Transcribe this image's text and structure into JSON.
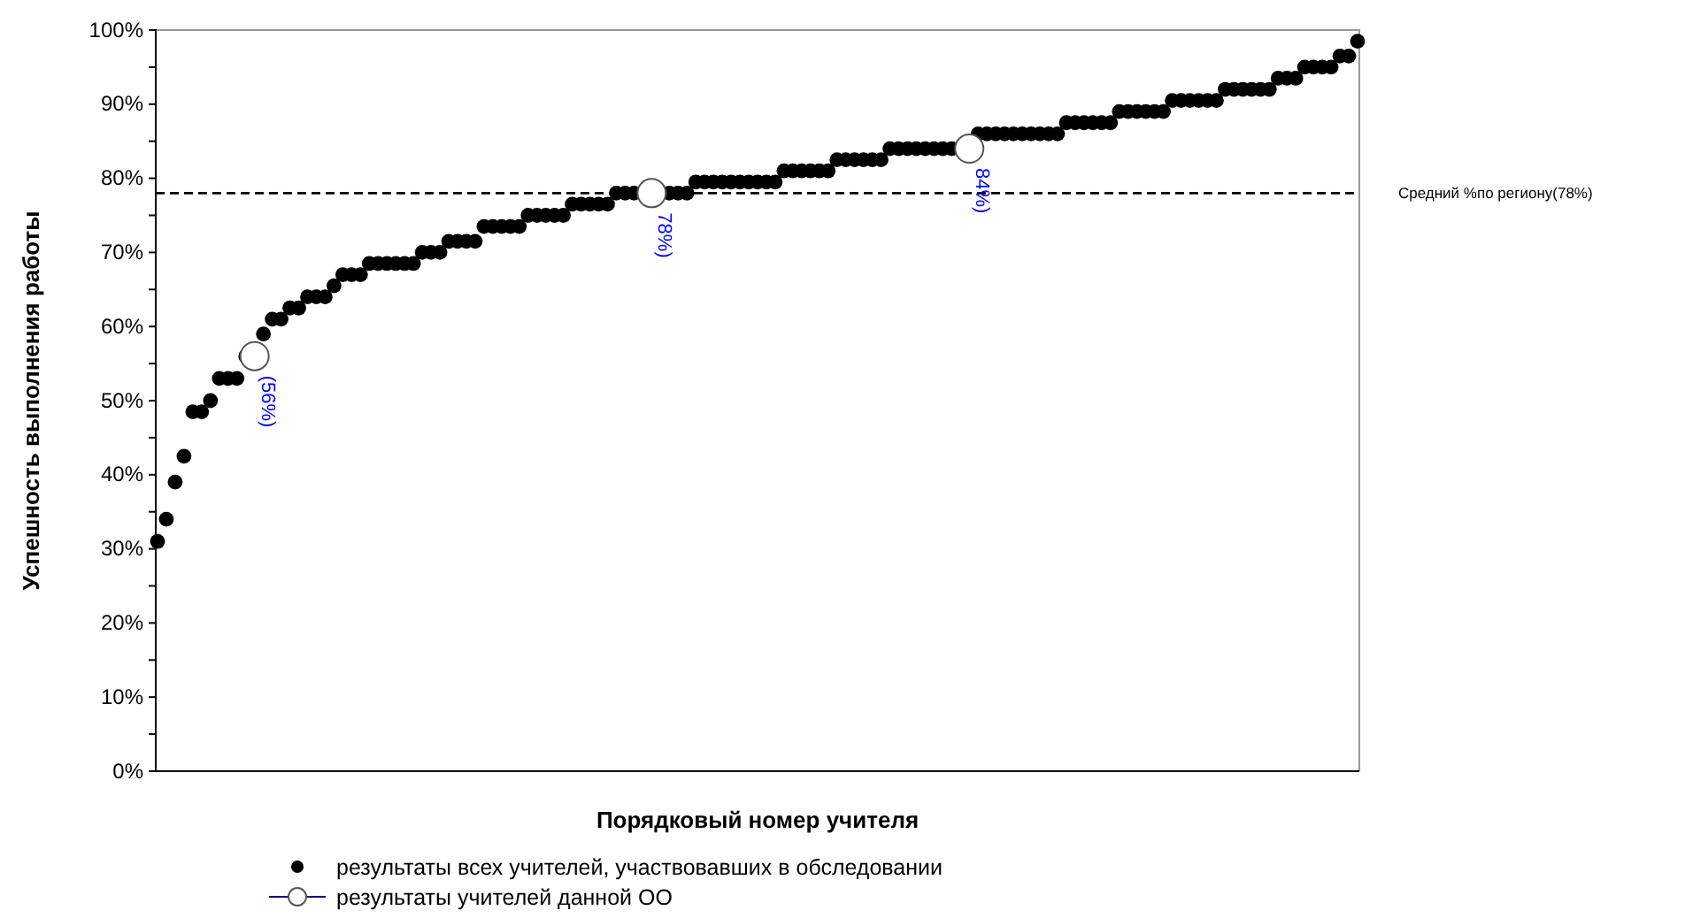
{
  "chart_data": {
    "type": "scatter",
    "xlabel": "Порядковый номер учителя",
    "ylabel": "Успешность выполнения работы",
    "categories": [
      null,
      null,
      null,
      null,
      null,
      null,
      null,
      null,
      null,
      null,
      null,
      null,
      null,
      null,
      null,
      null,
      null,
      null,
      null,
      null,
      null,
      null,
      null,
      null,
      null,
      null,
      null,
      null,
      null,
      null,
      null,
      null,
      null,
      null,
      null,
      null,
      null,
      null,
      null,
      null,
      null,
      null,
      null,
      null,
      null,
      null,
      null,
      null,
      null,
      null,
      null,
      null,
      null,
      null,
      null,
      null,
      null,
      null,
      null,
      null,
      null,
      null,
      null,
      null,
      null,
      null,
      null,
      null,
      null,
      null,
      null,
      null,
      null,
      null,
      null,
      null,
      null,
      null,
      null,
      null,
      null,
      null,
      null,
      null,
      null,
      null,
      null,
      null,
      null,
      null,
      null,
      null,
      null,
      null,
      null,
      null,
      null,
      null,
      null,
      null,
      null,
      null,
      null,
      null,
      null,
      null,
      null,
      null,
      null,
      null,
      null,
      null,
      null,
      null,
      null,
      null,
      null,
      null,
      null,
      null,
      null,
      null,
      null,
      null,
      null,
      null,
      null,
      null,
      null,
      null,
      null,
      null,
      null,
      null,
      null,
      null,
      null
    ],
    "series": [
      {
        "name": "результаты всех учителей, участвовавших в обследовании",
        "color": "#000000",
        "marker": "circle",
        "values": [
          31,
          34,
          39,
          42.5,
          48.5,
          48.5,
          50,
          53,
          53,
          53,
          56,
          null,
          59,
          61,
          61,
          62.5,
          62.5,
          64,
          64,
          64,
          65.5,
          67,
          67,
          67,
          68.5,
          68.5,
          68.5,
          68.5,
          68.5,
          68.5,
          70,
          70,
          70,
          71.5,
          71.5,
          71.5,
          71.5,
          73.5,
          73.5,
          73.5,
          73.5,
          73.5,
          75,
          75,
          75,
          75,
          75,
          76.5,
          76.5,
          76.5,
          76.5,
          76.5,
          78,
          78,
          78,
          null,
          null,
          null,
          78,
          78,
          78,
          79.5,
          79.5,
          79.5,
          79.5,
          79.5,
          79.5,
          79.5,
          79.5,
          79.5,
          79.5,
          81,
          81,
          81,
          81,
          81,
          81,
          82.5,
          82.5,
          82.5,
          82.5,
          82.5,
          82.5,
          84,
          84,
          84,
          84,
          84,
          84,
          84,
          84,
          null,
          null,
          86,
          86,
          86,
          86,
          86,
          86,
          86,
          86,
          86,
          86,
          87.5,
          87.5,
          87.5,
          87.5,
          87.5,
          87.5,
          89,
          89,
          89,
          89,
          89,
          89,
          90.5,
          90.5,
          90.5,
          90.5,
          90.5,
          90.5,
          92,
          92,
          92,
          92,
          92,
          92,
          93.5,
          93.5,
          93.5,
          95,
          95,
          95,
          95,
          96.5,
          96.5,
          98.5
        ]
      },
      {
        "name": "результаты учителей данной ОО",
        "color": "#ffffff",
        "marker": "circle",
        "values": [
          null,
          null,
          null,
          null,
          null,
          null,
          null,
          null,
          null,
          null,
          null,
          56,
          null,
          null,
          null,
          null,
          null,
          null,
          null,
          null,
          null,
          null,
          null,
          null,
          null,
          null,
          null,
          null,
          null,
          null,
          null,
          null,
          null,
          null,
          null,
          null,
          null,
          null,
          null,
          null,
          null,
          null,
          null,
          null,
          null,
          null,
          null,
          null,
          null,
          null,
          null,
          null,
          null,
          null,
          null,
          null,
          78,
          null,
          null,
          null,
          null,
          null,
          null,
          null,
          null,
          null,
          null,
          null,
          null,
          null,
          null,
          null,
          null,
          null,
          null,
          null,
          null,
          null,
          null,
          null,
          null,
          null,
          null,
          null,
          null,
          null,
          null,
          null,
          null,
          null,
          null,
          null,
          84,
          null,
          null,
          null,
          null,
          null,
          null,
          null,
          null,
          null,
          null,
          null,
          null,
          null,
          null,
          null,
          null,
          null,
          null,
          null,
          null,
          null,
          null,
          null,
          null,
          null,
          null,
          null,
          null,
          null,
          null,
          null,
          null,
          null,
          null,
          null,
          null,
          null,
          null,
          null,
          null,
          null,
          null,
          null,
          null
        ]
      }
    ],
    "ylim": [
      0,
      100
    ],
    "yticks": [
      {
        "value": 0,
        "label": "0%"
      },
      {
        "value": 5,
        "label": null
      },
      {
        "value": 10,
        "label": "10%"
      },
      {
        "value": 15,
        "label": null
      },
      {
        "value": 20,
        "label": "20%"
      },
      {
        "value": 25,
        "label": null
      },
      {
        "value": 30,
        "label": "30%"
      },
      {
        "value": 35,
        "label": null
      },
      {
        "value": 40,
        "label": "40%"
      },
      {
        "value": 45,
        "label": null
      },
      {
        "value": 50,
        "label": "50%"
      },
      {
        "value": 55,
        "label": null
      },
      {
        "value": 60,
        "label": "60%"
      },
      {
        "value": 65,
        "label": null
      },
      {
        "value": 70,
        "label": "70%"
      },
      {
        "value": 75,
        "label": null
      },
      {
        "value": 80,
        "label": "80%"
      },
      {
        "value": 85,
        "label": null
      },
      {
        "value": 90,
        "label": "90%"
      },
      {
        "value": 95,
        "label": null
      },
      {
        "value": 100,
        "label": "100%"
      }
    ],
    "ref_lines": [
      {
        "axis": "y",
        "value": 78,
        "label": "Средний %по региону(78%)",
        "color": "#000000",
        "line_style": "dashed"
      }
    ],
    "annotations": [
      {
        "text": "(56%)",
        "y": 56
      },
      {
        "text": "78%)",
        "y": 78
      },
      {
        "text": "84%)",
        "y": 84
      }
    ],
    "grid": false,
    "legend": "bottom"
  }
}
